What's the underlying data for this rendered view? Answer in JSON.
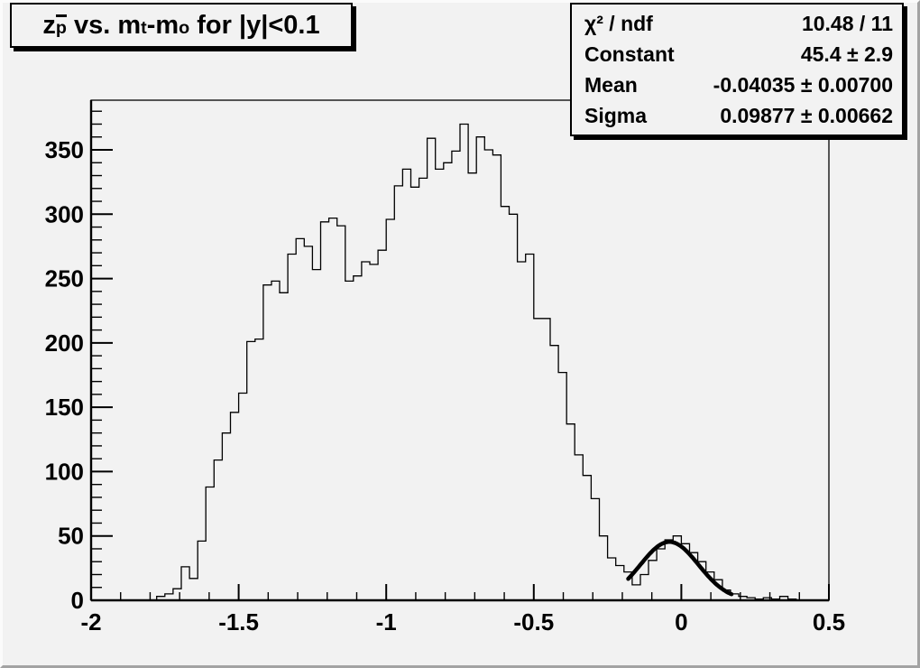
{
  "colors": {
    "canvas_background": "#f2f2f2",
    "line": "#000000",
    "pave_fill": "#f2f2f2",
    "pave_border": "#000000",
    "shadow": "#000000",
    "bevel_light": "#fbfbfb",
    "bevel_dark": "#a3a3a3"
  },
  "title": {
    "plain": "z_p̅ vs. m_t-m_o for |y|<0.1",
    "segments": [
      {
        "text": "z"
      },
      {
        "sub": "p",
        "overline": true
      },
      {
        "text": " vs. m"
      },
      {
        "sub": "t"
      },
      {
        "text": "-m"
      },
      {
        "sub": "o"
      },
      {
        "text": " for |y|<0.1"
      }
    ]
  },
  "stats": {
    "rows": [
      {
        "label": "χ² / ndf",
        "value": "10.48 / 11"
      },
      {
        "label": "Constant",
        "value": "45.4 ± 2.9"
      },
      {
        "label": "Mean",
        "value": "-0.04035 ± 0.00700"
      },
      {
        "label": "Sigma",
        "value": "0.09877 ± 0.00662"
      }
    ]
  },
  "chart_data": {
    "type": "bar",
    "subtype": "histogram-step",
    "title": "z_pbar vs. m_t-m_o for |y|<0.1",
    "xlabel": "",
    "ylabel": "",
    "x_min": -2.0,
    "x_max": 0.5,
    "n_bins": 90,
    "bin_width": 0.027778,
    "values": [
      0,
      0,
      0,
      0,
      0,
      0,
      0,
      0,
      3,
      5,
      9,
      26,
      17,
      46,
      88,
      109,
      130,
      146,
      161,
      201,
      203,
      245,
      248,
      239,
      269,
      281,
      275,
      257,
      294,
      297,
      291,
      248,
      252,
      263,
      261,
      272,
      296,
      322,
      335,
      321,
      328,
      359,
      335,
      340,
      349,
      370,
      332,
      360,
      350,
      346,
      306,
      300,
      263,
      269,
      219,
      219,
      198,
      177,
      137,
      113,
      97,
      79,
      50,
      33,
      27,
      22,
      12,
      20,
      31,
      40,
      47,
      50,
      44,
      37,
      30,
      22,
      16,
      8,
      5,
      3,
      2,
      1,
      2,
      1,
      3,
      1,
      0,
      0,
      0,
      0
    ],
    "x_ticks": {
      "major": [
        -2,
        -1.5,
        -1,
        -0.5,
        0,
        0.5
      ],
      "labels": [
        "-2",
        "-1.5",
        "-1",
        "-0.5",
        "0",
        "0.5"
      ],
      "minor_step": 0.1
    },
    "y_ticks": {
      "major": [
        0,
        50,
        100,
        150,
        200,
        250,
        300,
        350
      ],
      "labels": [
        "0",
        "50",
        "100",
        "150",
        "200",
        "250",
        "300",
        "350"
      ],
      "minor_step": 10
    },
    "ylim": [
      0,
      389
    ],
    "grid": false,
    "legend_position": "none",
    "fit": {
      "type": "gaussian",
      "chi2": 10.48,
      "ndf": 11,
      "constant": 45.4,
      "constant_error": 2.9,
      "mean": -0.04035,
      "mean_error": 0.007,
      "sigma": 0.09877,
      "sigma_error": 0.00662,
      "draw_range": [
        -0.18,
        0.17
      ]
    }
  }
}
